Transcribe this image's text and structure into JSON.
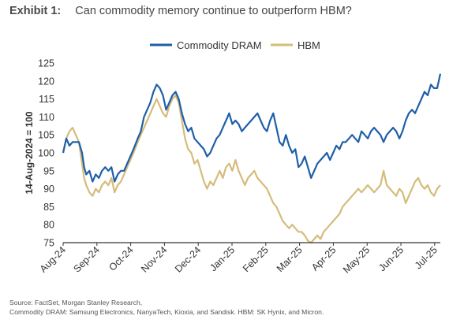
{
  "exhibit": {
    "label": "Exhibit 1:",
    "title": "Can commodity memory continue to outperform HBM?"
  },
  "footer": {
    "source": "Source: FactSet, Morgan Stanley Research,",
    "note": "Commodity DRAM: Samsung Electronics, NanyaTech, Kioxia, and Sandisk. HBM: SK Hynix, and Micron."
  },
  "colors": {
    "dram": "#1f5fa8",
    "hbm": "#d4bc7a",
    "axis": "#333333"
  },
  "chart_data": {
    "type": "line",
    "title": "",
    "xlabel": "",
    "ylabel": "14-Aug-2024 = 100",
    "ylim": [
      75,
      125
    ],
    "yticks": [
      75,
      80,
      85,
      90,
      95,
      100,
      105,
      110,
      115,
      120,
      125
    ],
    "grid": false,
    "legend_position": "top-center",
    "xticks": [
      "Aug-24",
      "Sep-24",
      "Oct-24",
      "Nov-24",
      "Dec-24",
      "Jan-25",
      "Feb-25",
      "Mar-25",
      "Apr-25",
      "May-25",
      "Jun-25",
      "Jul-25"
    ],
    "x_start": "2024-08-14",
    "x_end": "2025-08-08",
    "series": [
      {
        "name": "Commodity DRAM",
        "color": "#1f5fa8",
        "points": [
          [
            "2024-08-14",
            100
          ],
          [
            "2024-08-17",
            104
          ],
          [
            "2024-08-20",
            102
          ],
          [
            "2024-08-23",
            103
          ],
          [
            "2024-08-26",
            103
          ],
          [
            "2024-08-29",
            103
          ],
          [
            "2024-09-01",
            100
          ],
          [
            "2024-09-03",
            96
          ],
          [
            "2024-09-05",
            94
          ],
          [
            "2024-09-08",
            95
          ],
          [
            "2024-09-11",
            92
          ],
          [
            "2024-09-14",
            94
          ],
          [
            "2024-09-17",
            93
          ],
          [
            "2024-09-20",
            95
          ],
          [
            "2024-09-23",
            96
          ],
          [
            "2024-09-26",
            95
          ],
          [
            "2024-09-29",
            96
          ],
          [
            "2024-10-02",
            92
          ],
          [
            "2024-10-05",
            94
          ],
          [
            "2024-10-08",
            95
          ],
          [
            "2024-10-11",
            95
          ],
          [
            "2024-10-14",
            97
          ],
          [
            "2024-10-17",
            99
          ],
          [
            "2024-10-20",
            101
          ],
          [
            "2024-10-24",
            104
          ],
          [
            "2024-10-27",
            106
          ],
          [
            "2024-10-30",
            110
          ],
          [
            "2024-11-02",
            112
          ],
          [
            "2024-11-05",
            114
          ],
          [
            "2024-11-08",
            117
          ],
          [
            "2024-11-11",
            119
          ],
          [
            "2024-11-14",
            118
          ],
          [
            "2024-11-17",
            116
          ],
          [
            "2024-11-20",
            112
          ],
          [
            "2024-11-23",
            114
          ],
          [
            "2024-11-26",
            116
          ],
          [
            "2024-11-29",
            117
          ],
          [
            "2024-12-02",
            115
          ],
          [
            "2024-12-05",
            111
          ],
          [
            "2024-12-08",
            108
          ],
          [
            "2024-12-11",
            106
          ],
          [
            "2024-12-14",
            107
          ],
          [
            "2024-12-17",
            104
          ],
          [
            "2024-12-20",
            103
          ],
          [
            "2024-12-23",
            102
          ],
          [
            "2024-12-26",
            101
          ],
          [
            "2024-12-29",
            99
          ],
          [
            "2025-01-01",
            100
          ],
          [
            "2025-01-04",
            102
          ],
          [
            "2025-01-07",
            104
          ],
          [
            "2025-01-10",
            105
          ],
          [
            "2025-01-13",
            107
          ],
          [
            "2025-01-16",
            109
          ],
          [
            "2025-01-19",
            111
          ],
          [
            "2025-01-22",
            108
          ],
          [
            "2025-01-25",
            109
          ],
          [
            "2025-01-28",
            108
          ],
          [
            "2025-01-31",
            106
          ],
          [
            "2025-02-03",
            107
          ],
          [
            "2025-02-06",
            108
          ],
          [
            "2025-02-09",
            109
          ],
          [
            "2025-02-12",
            110
          ],
          [
            "2025-02-15",
            111
          ],
          [
            "2025-02-18",
            109
          ],
          [
            "2025-02-21",
            107
          ],
          [
            "2025-02-24",
            106
          ],
          [
            "2025-02-27",
            109
          ],
          [
            "2025-03-02",
            111
          ],
          [
            "2025-03-05",
            107
          ],
          [
            "2025-03-08",
            103
          ],
          [
            "2025-03-11",
            102
          ],
          [
            "2025-03-14",
            105
          ],
          [
            "2025-03-17",
            102
          ],
          [
            "2025-03-20",
            100
          ],
          [
            "2025-03-23",
            101
          ],
          [
            "2025-03-26",
            96
          ],
          [
            "2025-03-29",
            97
          ],
          [
            "2025-04-01",
            99
          ],
          [
            "2025-04-04",
            96
          ],
          [
            "2025-04-07",
            93
          ],
          [
            "2025-04-10",
            95
          ],
          [
            "2025-04-13",
            97
          ],
          [
            "2025-04-16",
            98
          ],
          [
            "2025-04-19",
            99
          ],
          [
            "2025-04-22",
            100
          ],
          [
            "2025-04-25",
            98
          ],
          [
            "2025-04-28",
            100
          ],
          [
            "2025-05-01",
            102
          ],
          [
            "2025-05-04",
            101
          ],
          [
            "2025-05-07",
            103
          ],
          [
            "2025-05-10",
            103
          ],
          [
            "2025-05-13",
            104
          ],
          [
            "2025-05-16",
            105
          ],
          [
            "2025-05-19",
            104
          ],
          [
            "2025-05-22",
            103
          ],
          [
            "2025-05-25",
            106
          ],
          [
            "2025-05-28",
            105
          ],
          [
            "2025-05-31",
            104
          ],
          [
            "2025-06-03",
            106
          ],
          [
            "2025-06-06",
            107
          ],
          [
            "2025-06-09",
            106
          ],
          [
            "2025-06-12",
            105
          ],
          [
            "2025-06-15",
            103
          ],
          [
            "2025-06-18",
            105
          ],
          [
            "2025-06-21",
            106
          ],
          [
            "2025-06-24",
            107
          ],
          [
            "2025-06-27",
            106
          ],
          [
            "2025-06-30",
            104
          ],
          [
            "2025-07-03",
            106
          ],
          [
            "2025-07-06",
            109
          ],
          [
            "2025-07-09",
            111
          ],
          [
            "2025-07-12",
            112
          ],
          [
            "2025-07-15",
            111
          ],
          [
            "2025-07-18",
            113
          ],
          [
            "2025-07-21",
            115
          ],
          [
            "2025-07-24",
            117
          ],
          [
            "2025-07-27",
            116
          ],
          [
            "2025-07-30",
            119
          ],
          [
            "2025-08-02",
            118
          ],
          [
            "2025-08-05",
            118
          ],
          [
            "2025-08-08",
            122
          ]
        ]
      },
      {
        "name": "HBM",
        "color": "#d4bc7a",
        "points": [
          [
            "2024-08-14",
            100
          ],
          [
            "2024-08-17",
            104
          ],
          [
            "2024-08-20",
            106
          ],
          [
            "2024-08-23",
            107
          ],
          [
            "2024-08-26",
            105
          ],
          [
            "2024-08-29",
            103
          ],
          [
            "2024-09-01",
            97
          ],
          [
            "2024-09-03",
            93
          ],
          [
            "2024-09-05",
            91
          ],
          [
            "2024-09-08",
            89
          ],
          [
            "2024-09-11",
            88
          ],
          [
            "2024-09-14",
            90
          ],
          [
            "2024-09-17",
            89
          ],
          [
            "2024-09-20",
            91
          ],
          [
            "2024-09-23",
            92
          ],
          [
            "2024-09-26",
            91
          ],
          [
            "2024-09-29",
            93
          ],
          [
            "2024-10-02",
            89
          ],
          [
            "2024-10-05",
            91
          ],
          [
            "2024-10-08",
            92
          ],
          [
            "2024-10-11",
            94
          ],
          [
            "2024-10-14",
            96
          ],
          [
            "2024-10-17",
            98
          ],
          [
            "2024-10-20",
            100
          ],
          [
            "2024-10-24",
            103
          ],
          [
            "2024-10-27",
            105
          ],
          [
            "2024-10-30",
            107
          ],
          [
            "2024-11-02",
            109
          ],
          [
            "2024-11-05",
            111
          ],
          [
            "2024-11-08",
            113
          ],
          [
            "2024-11-11",
            115
          ],
          [
            "2024-11-14",
            113
          ],
          [
            "2024-11-17",
            111
          ],
          [
            "2024-11-20",
            110
          ],
          [
            "2024-11-23",
            113
          ],
          [
            "2024-11-26",
            115
          ],
          [
            "2024-11-29",
            116
          ],
          [
            "2024-12-02",
            114
          ],
          [
            "2024-12-05",
            109
          ],
          [
            "2024-12-08",
            104
          ],
          [
            "2024-12-11",
            101
          ],
          [
            "2024-12-14",
            100
          ],
          [
            "2024-12-17",
            97
          ],
          [
            "2024-12-20",
            98
          ],
          [
            "2024-12-23",
            95
          ],
          [
            "2024-12-26",
            92
          ],
          [
            "2024-12-29",
            90
          ],
          [
            "2025-01-01",
            92
          ],
          [
            "2025-01-04",
            91
          ],
          [
            "2025-01-07",
            93
          ],
          [
            "2025-01-10",
            95
          ],
          [
            "2025-01-13",
            93
          ],
          [
            "2025-01-16",
            96
          ],
          [
            "2025-01-19",
            97
          ],
          [
            "2025-01-22",
            95
          ],
          [
            "2025-01-25",
            98
          ],
          [
            "2025-01-28",
            95
          ],
          [
            "2025-01-31",
            93
          ],
          [
            "2025-02-03",
            91
          ],
          [
            "2025-02-06",
            93
          ],
          [
            "2025-02-09",
            94
          ],
          [
            "2025-02-12",
            95
          ],
          [
            "2025-02-15",
            93
          ],
          [
            "2025-02-18",
            92
          ],
          [
            "2025-02-21",
            91
          ],
          [
            "2025-02-24",
            90
          ],
          [
            "2025-02-27",
            88
          ],
          [
            "2025-03-02",
            86
          ],
          [
            "2025-03-05",
            85
          ],
          [
            "2025-03-08",
            83
          ],
          [
            "2025-03-11",
            81
          ],
          [
            "2025-03-14",
            80
          ],
          [
            "2025-03-17",
            79
          ],
          [
            "2025-03-20",
            80
          ],
          [
            "2025-03-23",
            79
          ],
          [
            "2025-03-26",
            78
          ],
          [
            "2025-03-29",
            78
          ],
          [
            "2025-04-01",
            77
          ],
          [
            "2025-04-04",
            75.5
          ],
          [
            "2025-04-07",
            75
          ],
          [
            "2025-04-10",
            76
          ],
          [
            "2025-04-13",
            77
          ],
          [
            "2025-04-16",
            76
          ],
          [
            "2025-04-19",
            78
          ],
          [
            "2025-04-22",
            79
          ],
          [
            "2025-04-25",
            80
          ],
          [
            "2025-04-28",
            81
          ],
          [
            "2025-05-01",
            82
          ],
          [
            "2025-05-04",
            83
          ],
          [
            "2025-05-07",
            85
          ],
          [
            "2025-05-10",
            86
          ],
          [
            "2025-05-13",
            87
          ],
          [
            "2025-05-16",
            88
          ],
          [
            "2025-05-19",
            89
          ],
          [
            "2025-05-22",
            90
          ],
          [
            "2025-05-25",
            89
          ],
          [
            "2025-05-28",
            90
          ],
          [
            "2025-05-31",
            91
          ],
          [
            "2025-06-03",
            90
          ],
          [
            "2025-06-06",
            89
          ],
          [
            "2025-06-09",
            90
          ],
          [
            "2025-06-12",
            91
          ],
          [
            "2025-06-15",
            95
          ],
          [
            "2025-06-18",
            91
          ],
          [
            "2025-06-21",
            90
          ],
          [
            "2025-06-24",
            89
          ],
          [
            "2025-06-27",
            88
          ],
          [
            "2025-06-30",
            90
          ],
          [
            "2025-07-03",
            89
          ],
          [
            "2025-07-06",
            86
          ],
          [
            "2025-07-09",
            88
          ],
          [
            "2025-07-12",
            90
          ],
          [
            "2025-07-15",
            92
          ],
          [
            "2025-07-18",
            93
          ],
          [
            "2025-07-21",
            91
          ],
          [
            "2025-07-24",
            90
          ],
          [
            "2025-07-27",
            91
          ],
          [
            "2025-07-30",
            89
          ],
          [
            "2025-08-02",
            88
          ],
          [
            "2025-08-05",
            90
          ],
          [
            "2025-08-08",
            91
          ]
        ]
      }
    ]
  }
}
